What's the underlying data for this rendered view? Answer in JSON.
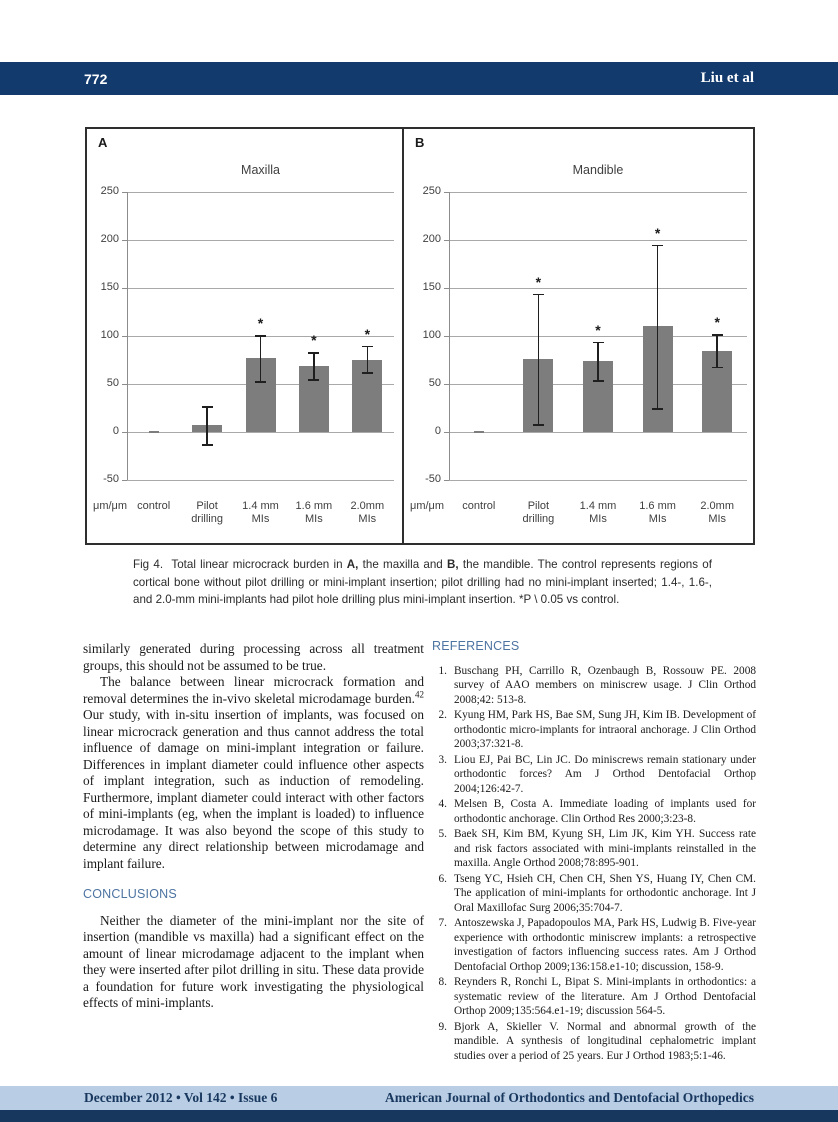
{
  "header": {
    "page_number": "772",
    "running_head": "Liu et al"
  },
  "figure_caption": {
    "p1": "Fig 4.",
    "p2": "  Total linear microcrack burden in ",
    "bold_a": "A,",
    "p3": " the maxilla and ",
    "bold_b": "B,",
    "p4": " the mandible. The control represents regions of cortical bone without pilot drilling or mini-implant insertion; pilot drilling had no mini-implant inserted; 1.4-, 1.6-, and 2.0-mm mini-implants had pilot hole drilling plus mini-implant insertion. *P \\ 0.05 vs control."
  },
  "chart_data": [
    {
      "type": "bar",
      "panel_label": "A",
      "title": "Maxilla",
      "unit_label": "μm/μm",
      "ylim": [
        -50,
        250
      ],
      "yticks": [
        250,
        200,
        150,
        100,
        50,
        0,
        -50
      ],
      "categories": [
        [
          "control"
        ],
        [
          "Pilot",
          "drilling"
        ],
        [
          "1.4 mm",
          "MIs"
        ],
        [
          "1.6 mm",
          "MIs"
        ],
        [
          "2.0mm",
          "MIs"
        ]
      ],
      "values": [
        1,
        7,
        77,
        69,
        75
      ],
      "error_low": [
        null,
        -13,
        53,
        55,
        62
      ],
      "error_high": [
        null,
        27,
        101,
        83,
        90
      ],
      "significant": [
        false,
        false,
        true,
        true,
        true
      ]
    },
    {
      "type": "bar",
      "panel_label": "B",
      "title": "Mandible",
      "unit_label": "μm/μm",
      "ylim": [
        -50,
        250
      ],
      "yticks": [
        250,
        200,
        150,
        100,
        50,
        0,
        -50
      ],
      "categories": [
        [
          "control"
        ],
        [
          "Pilot",
          "drilling"
        ],
        [
          "1.4 mm",
          "MIs"
        ],
        [
          "1.6 mm",
          "MIs"
        ],
        [
          "2.0mm",
          "MIs"
        ]
      ],
      "values": [
        1,
        76,
        74,
        110,
        84
      ],
      "error_low": [
        null,
        8,
        54,
        25,
        68
      ],
      "error_high": [
        null,
        144,
        94,
        195,
        102
      ],
      "significant": [
        false,
        true,
        true,
        true,
        true
      ]
    }
  ],
  "article": {
    "paragraph1": "similarly generated during processing across all treatment groups, this should not be assumed to be true.",
    "paragraph2_before": "The balance between linear microcrack formation and removal determines the in-vivo skeletal microdamage burden.",
    "paragraph2_sup": "42",
    "paragraph2_after": " Our study, with in-situ insertion of implants, was focused on linear microcrack generation and thus cannot address the total influence of damage on mini-implant integration or failure. Differences in implant diameter could influence other aspects of implant integration, such as induction of remodeling. Furthermore, implant diameter could interact with other factors of mini-implants (eg, when the implant is loaded) to influence microdamage. It was also beyond the scope of this study to determine any direct relationship between microdamage and implant failure.",
    "conclusions_heading": "CONCLUSIONS",
    "conclusions_text": "Neither the diameter of the mini-implant nor the site of insertion (mandible vs maxilla) had a significant effect on the amount of linear microdamage adjacent to the implant when they were inserted after pilot drilling in situ. These data provide a foundation for future work investigating the physiological effects of mini-implants."
  },
  "references": {
    "heading": "REFERENCES",
    "items": [
      {
        "num": "1.",
        "text": "Buschang PH, Carrillo R, Ozenbaugh B, Rossouw PE. 2008 survey of AAO members on miniscrew usage. J Clin Orthod 2008;42: 513-8."
      },
      {
        "num": "2.",
        "text": "Kyung HM, Park HS, Bae SM, Sung JH, Kim IB. Development of orthodontic micro-implants for intraoral anchorage. J Clin Orthod 2003;37:321-8."
      },
      {
        "num": "3.",
        "text": "Liou EJ, Pai BC, Lin JC. Do miniscrews remain stationary under orthodontic forces? Am J Orthod Dentofacial Orthop 2004;126:42-7."
      },
      {
        "num": "4.",
        "text": "Melsen B, Costa A. Immediate loading of implants used for orthodontic anchorage. Clin Orthod Res 2000;3:23-8."
      },
      {
        "num": "5.",
        "text": "Baek SH, Kim BM, Kyung SH, Lim JK, Kim YH. Success rate and risk factors associated with mini-implants reinstalled in the maxilla. Angle Orthod 2008;78:895-901."
      },
      {
        "num": "6.",
        "text": "Tseng YC, Hsieh CH, Chen CH, Shen YS, Huang IY, Chen CM. The application of mini-implants for orthodontic anchorage. Int J Oral Maxillofac Surg 2006;35:704-7."
      },
      {
        "num": "7.",
        "text": "Antoszewska J, Papadopoulos MA, Park HS, Ludwig B. Five-year experience with orthodontic miniscrew implants: a retrospective investigation of factors influencing success rates. Am J Orthod Dentofacial Orthop 2009;136:158.e1-10; discussion, 158-9."
      },
      {
        "num": "8.",
        "text": "Reynders R, Ronchi L, Bipat S. Mini-implants in orthodontics: a systematic review of the literature. Am J Orthod Dentofacial Orthop 2009;135:564.e1-19; discussion 564-5."
      },
      {
        "num": "9.",
        "text": "Bjork A, Skieller V. Normal and abnormal growth of the mandible. A synthesis of longitudinal cephalometric implant studies over a period of 25 years. Eur J Orthod 1983;5:1-46."
      }
    ]
  },
  "footer": {
    "issue_line": "December 2012 • Vol 142 • Issue 6",
    "journal_name": "American Journal of Orthodontics and Dentofacial Orthopedics"
  },
  "colors": {
    "header_navy": "#133a6d",
    "footer_strip_navy": "#17375e",
    "footer_band_blue": "#b9cde4",
    "section_heading_blue": "#4d74a1",
    "bar_gray": "#7d7d7d",
    "gridline_gray": "#a9a9a9"
  }
}
